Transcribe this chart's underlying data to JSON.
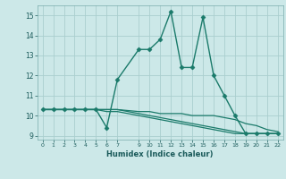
{
  "xlabel": "Humidex (Indice chaleur)",
  "background_color": "#cce8e8",
  "grid_color": "#aacece",
  "line_color": "#1a7a6a",
  "xlim": [
    -0.5,
    22.5
  ],
  "ylim": [
    8.8,
    15.5
  ],
  "xticks": [
    0,
    1,
    2,
    3,
    4,
    5,
    6,
    7,
    9,
    10,
    11,
    12,
    13,
    14,
    15,
    16,
    17,
    18,
    19,
    20,
    21,
    22
  ],
  "yticks": [
    9,
    10,
    11,
    12,
    13,
    14,
    15
  ],
  "series": [
    {
      "x": [
        0,
        1,
        2,
        3,
        4,
        5,
        6,
        7,
        9,
        10,
        11,
        12,
        13,
        14,
        15,
        16,
        17,
        18,
        19,
        20,
        21,
        22
      ],
      "y": [
        10.3,
        10.3,
        10.3,
        10.3,
        10.3,
        10.3,
        9.4,
        11.8,
        13.3,
        13.3,
        13.8,
        15.2,
        12.4,
        12.4,
        14.9,
        12.0,
        11.0,
        10.0,
        9.1,
        9.1,
        9.1,
        9.1
      ],
      "marker": "D",
      "markersize": 2.5,
      "linewidth": 1.0
    },
    {
      "x": [
        0,
        1,
        2,
        3,
        4,
        5,
        6,
        7,
        9,
        10,
        11,
        12,
        13,
        14,
        15,
        16,
        17,
        18,
        19,
        20,
        21,
        22
      ],
      "y": [
        10.3,
        10.3,
        10.3,
        10.3,
        10.3,
        10.3,
        10.3,
        10.3,
        10.2,
        10.2,
        10.1,
        10.1,
        10.1,
        10.0,
        10.0,
        10.0,
        9.9,
        9.8,
        9.6,
        9.5,
        9.3,
        9.2
      ],
      "marker": null,
      "linewidth": 0.9
    },
    {
      "x": [
        0,
        1,
        2,
        3,
        4,
        5,
        6,
        7,
        9,
        10,
        11,
        12,
        13,
        14,
        15,
        16,
        17,
        18,
        19,
        20,
        21,
        22
      ],
      "y": [
        10.3,
        10.3,
        10.3,
        10.3,
        10.3,
        10.3,
        10.3,
        10.3,
        10.1,
        10.0,
        9.9,
        9.8,
        9.7,
        9.6,
        9.5,
        9.4,
        9.3,
        9.2,
        9.1,
        9.1,
        9.1,
        9.1
      ],
      "marker": null,
      "linewidth": 0.9
    },
    {
      "x": [
        0,
        1,
        2,
        3,
        4,
        5,
        6,
        7,
        9,
        10,
        11,
        12,
        13,
        14,
        15,
        16,
        17,
        18,
        19,
        20,
        21,
        22
      ],
      "y": [
        10.3,
        10.3,
        10.3,
        10.3,
        10.3,
        10.3,
        10.2,
        10.2,
        10.0,
        9.9,
        9.8,
        9.7,
        9.6,
        9.5,
        9.4,
        9.3,
        9.2,
        9.1,
        9.1,
        9.1,
        9.1,
        9.1
      ],
      "marker": null,
      "linewidth": 0.9
    }
  ]
}
